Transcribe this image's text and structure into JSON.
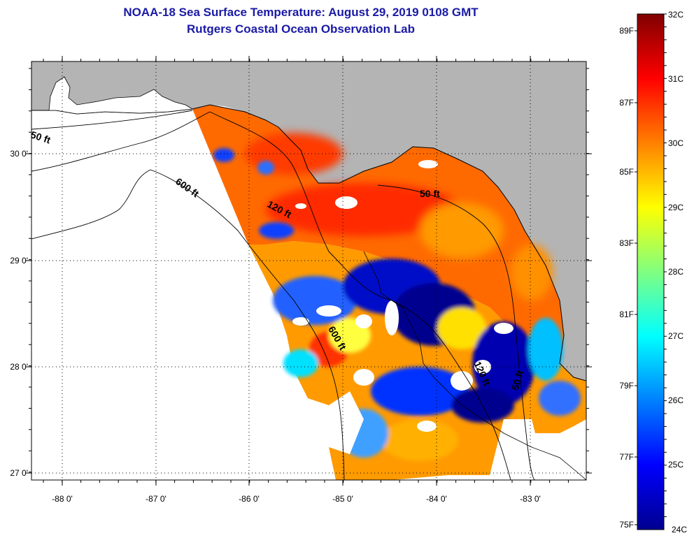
{
  "title": {
    "line1": "NOAA-18 Sea Surface Temperature:  August 29, 2019 0108 GMT",
    "line2": "Rutgers Coastal Ocean Observation Lab"
  },
  "map": {
    "longitude_ticks": [
      "-88 0'",
      "-87 0'",
      "-86 0'",
      "-85 0'",
      "-84 0'",
      "-83 0'"
    ],
    "latitude_ticks": [
      "30 0'",
      "29 0'",
      "28 0'",
      "27 0'"
    ],
    "contour_labels": [
      "50 ft",
      "600 ft",
      "120 ft",
      "50 ft",
      "600 ft",
      "120 ft",
      "50 ft"
    ],
    "colors": {
      "land": "#b4b4b4",
      "nodata": "#ffffff",
      "ocean_outside_swath": "#ffffff"
    }
  },
  "colorbar": {
    "celsius_labels": [
      "32C",
      "31C",
      "30C",
      "29C",
      "28C",
      "27C",
      "26C",
      "25C",
      "24C"
    ],
    "fahrenheit_labels": [
      "89F",
      "87F",
      "85F",
      "83F",
      "81F",
      "79F",
      "77F",
      "75F"
    ],
    "range_c": [
      24,
      32
    ],
    "colors": [
      "#00008f",
      "#0000ff",
      "#0080ff",
      "#00ffff",
      "#80ff80",
      "#ffff00",
      "#ff8000",
      "#ff0000",
      "#800000"
    ]
  }
}
